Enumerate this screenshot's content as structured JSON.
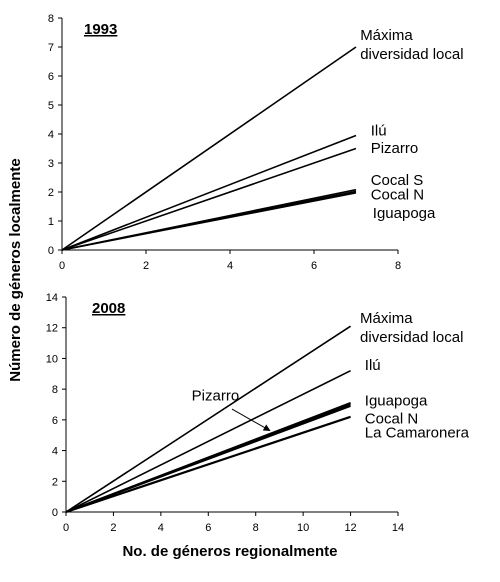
{
  "figure": {
    "ylabel": "Número de géneros localmente",
    "xlabel": "No. de géneros regionalmente"
  },
  "chart_data": [
    {
      "type": "line",
      "title": "1993",
      "xlim": [
        0,
        8
      ],
      "ylim": [
        0,
        8
      ],
      "xticks": [
        0,
        2,
        4,
        6,
        8
      ],
      "yticks": [
        0,
        1,
        2,
        3,
        4,
        5,
        6,
        7,
        8
      ],
      "series": [
        {
          "id": "maxima",
          "x": [
            0,
            7
          ],
          "y": [
            0,
            7
          ],
          "width": 1.6
        },
        {
          "id": "ilu",
          "x": [
            0,
            7
          ],
          "y": [
            0,
            3.95
          ],
          "width": 1.6
        },
        {
          "id": "pizarro",
          "x": [
            0,
            7
          ],
          "y": [
            0,
            3.5
          ],
          "width": 1.6
        },
        {
          "id": "cocal-s",
          "x": [
            0,
            7
          ],
          "y": [
            0,
            2.08
          ],
          "width": 1.6
        },
        {
          "id": "cocal-n",
          "x": [
            0,
            7
          ],
          "y": [
            0,
            2.02
          ],
          "width": 1.6
        },
        {
          "id": "iguapoga",
          "x": [
            0,
            7
          ],
          "y": [
            0,
            1.97
          ],
          "width": 1.6
        }
      ],
      "annotations": [
        {
          "id": "maxima",
          "lines": [
            "Máxima",
            "diversidad local"
          ],
          "x": 7.1,
          "y": 7.25
        },
        {
          "id": "ilu",
          "lines": [
            "Ilú"
          ],
          "x": 7.35,
          "y": 3.95
        },
        {
          "id": "pizarro",
          "lines": [
            "Pizarro"
          ],
          "x": 7.35,
          "y": 3.35
        },
        {
          "id": "cocal-s",
          "lines": [
            "Cocal S"
          ],
          "x": 7.35,
          "y": 2.25
        },
        {
          "id": "cocal-n",
          "lines": [
            "Cocal N"
          ],
          "x": 7.35,
          "y": 1.75
        },
        {
          "id": "iguapoga",
          "lines": [
            "Iguapoga"
          ],
          "x": 7.4,
          "y": 1.1
        }
      ]
    },
    {
      "type": "line",
      "title": "2008",
      "xlim": [
        0,
        14
      ],
      "ylim": [
        0,
        14
      ],
      "xticks": [
        0,
        2,
        4,
        6,
        8,
        10,
        12,
        14
      ],
      "yticks": [
        0,
        2,
        4,
        6,
        8,
        10,
        12,
        14
      ],
      "series": [
        {
          "id": "maxima",
          "x": [
            0,
            12
          ],
          "y": [
            0,
            12.1
          ],
          "width": 1.6
        },
        {
          "id": "ilu",
          "x": [
            0,
            12
          ],
          "y": [
            0,
            9.2
          ],
          "width": 1.6
        },
        {
          "id": "pizarro",
          "x": [
            0,
            12
          ],
          "y": [
            0,
            7.0
          ],
          "width": 1.6
        },
        {
          "id": "iguapoga",
          "x": [
            0,
            12
          ],
          "y": [
            0,
            7.1
          ],
          "width": 2.0
        },
        {
          "id": "cocal-n",
          "x": [
            0,
            12
          ],
          "y": [
            0,
            6.9
          ],
          "width": 1.8
        },
        {
          "id": "la-camaronera",
          "x": [
            0,
            12
          ],
          "y": [
            0,
            6.2
          ],
          "width": 2.2
        }
      ],
      "annotations": [
        {
          "id": "maxima",
          "lines": [
            "Máxima",
            "diversidad local"
          ],
          "x": 12.4,
          "y": 12.3
        },
        {
          "id": "ilu",
          "lines": [
            "Ilú"
          ],
          "x": 12.6,
          "y": 9.25
        },
        {
          "id": "pizarro",
          "lines": [
            "Pizarro"
          ],
          "x": 5.3,
          "y": 7.25
        },
        {
          "id": "iguapoga",
          "lines": [
            "Iguapoga"
          ],
          "x": 12.6,
          "y": 6.95
        },
        {
          "id": "cocal-n",
          "lines": [
            "Cocal N"
          ],
          "x": 12.6,
          "y": 5.75
        },
        {
          "id": "la-camaronera",
          "lines": [
            "La Camaronera"
          ],
          "x": 12.6,
          "y": 4.85
        }
      ],
      "arrow": {
        "from": [
          7.0,
          6.7
        ],
        "to": [
          8.6,
          5.3
        ]
      }
    }
  ]
}
